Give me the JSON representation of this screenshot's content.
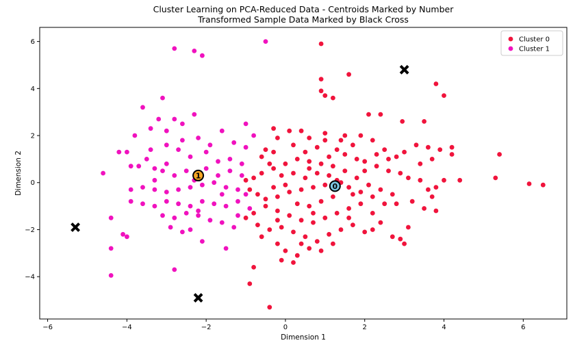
{
  "chart_data": {
    "type": "scatter",
    "title": "Cluster Learning on PCA-Reduced Data - Centroids Marked by Number",
    "subtitle": "Transformed Sample Data Marked by Black Cross",
    "xlabel": "Dimension 1",
    "ylabel": "Dimension 2",
    "xlim": [
      -6.2,
      7.1
    ],
    "ylim": [
      -5.8,
      6.6
    ],
    "xticks": [
      -6,
      -4,
      -2,
      0,
      2,
      4,
      6
    ],
    "yticks": [
      -4,
      -2,
      0,
      2,
      4,
      6
    ],
    "grid": false,
    "legend_position": "top-right",
    "legend": [
      "Cluster 0",
      "Cluster 1"
    ],
    "colors": {
      "cluster0": "#f0143c",
      "cluster1": "#f012be",
      "centroid0_fill": "#7ec8e3",
      "centroid1_fill": "#f5a623",
      "sample": "#000000"
    },
    "series": [
      {
        "name": "Cluster 0",
        "points": [
          [
            0.9,
            5.9
          ],
          [
            0.9,
            4.4
          ],
          [
            0.9,
            3.9
          ],
          [
            1.0,
            3.7
          ],
          [
            1.6,
            4.6
          ],
          [
            1.2,
            3.6
          ],
          [
            2.1,
            2.9
          ],
          [
            2.4,
            2.9
          ],
          [
            2.95,
            2.6
          ],
          [
            3.8,
            4.2
          ],
          [
            4.0,
            3.7
          ],
          [
            3.5,
            2.6
          ],
          [
            3.3,
            1.6
          ],
          [
            3.6,
            1.5
          ],
          [
            3.9,
            1.4
          ],
          [
            4.2,
            1.5
          ],
          [
            4.4,
            0.1
          ],
          [
            4.2,
            1.2
          ],
          [
            3.7,
            1.0
          ],
          [
            3.4,
            0.8
          ],
          [
            3.0,
            1.3
          ],
          [
            2.8,
            1.1
          ],
          [
            2.5,
            1.4
          ],
          [
            2.2,
            1.8
          ],
          [
            1.9,
            2.0
          ],
          [
            1.7,
            1.6
          ],
          [
            1.4,
            1.8
          ],
          [
            1.0,
            2.1
          ],
          [
            0.6,
            1.9
          ],
          [
            0.4,
            2.2
          ],
          [
            0.1,
            2.2
          ],
          [
            -0.3,
            2.3
          ],
          [
            -0.2,
            1.9
          ],
          [
            -0.5,
            1.4
          ],
          [
            -0.6,
            1.1
          ],
          [
            -0.4,
            0.8
          ],
          [
            0.2,
            1.6
          ],
          [
            0.5,
            1.3
          ],
          [
            0.8,
            1.5
          ],
          [
            1.1,
            1.1
          ],
          [
            1.3,
            1.4
          ],
          [
            1.5,
            1.2
          ],
          [
            1.8,
            1.0
          ],
          [
            2.0,
            0.9
          ],
          [
            2.3,
            0.7
          ],
          [
            2.6,
            0.5
          ],
          [
            2.9,
            0.4
          ],
          [
            3.1,
            0.2
          ],
          [
            3.4,
            0.1
          ],
          [
            3.6,
            -0.3
          ],
          [
            3.8,
            -0.2
          ],
          [
            4.0,
            0.1
          ],
          [
            3.7,
            -0.6
          ],
          [
            3.2,
            -0.8
          ],
          [
            3.5,
            -1.1
          ],
          [
            3.8,
            -1.2
          ],
          [
            3.1,
            -1.9
          ],
          [
            2.9,
            -2.4
          ],
          [
            3.0,
            -2.6
          ],
          [
            2.7,
            -2.3
          ],
          [
            2.4,
            -1.7
          ],
          [
            2.2,
            -1.3
          ],
          [
            2.5,
            -0.9
          ],
          [
            2.7,
            -0.5
          ],
          [
            2.4,
            -0.3
          ],
          [
            2.1,
            -0.1
          ],
          [
            1.8,
            0.2
          ],
          [
            1.5,
            0.5
          ],
          [
            1.2,
            0.7
          ],
          [
            0.9,
            0.8
          ],
          [
            0.6,
            0.9
          ],
          [
            0.3,
            1.0
          ],
          [
            0.0,
            0.8
          ],
          [
            -0.3,
            0.6
          ],
          [
            -0.6,
            0.4
          ],
          [
            -0.8,
            0.2
          ],
          [
            -1.0,
            0.1
          ],
          [
            -0.9,
            -0.3
          ],
          [
            -0.7,
            -0.5
          ],
          [
            -0.5,
            -0.7
          ],
          [
            -0.2,
            -0.6
          ],
          [
            0.1,
            -0.4
          ],
          [
            0.4,
            -0.3
          ],
          [
            0.7,
            -0.2
          ],
          [
            1.0,
            -0.1
          ],
          [
            1.3,
            0.1
          ],
          [
            1.6,
            -0.2
          ],
          [
            1.9,
            -0.4
          ],
          [
            2.2,
            -0.6
          ],
          [
            1.9,
            -0.9
          ],
          [
            1.6,
            -1.1
          ],
          [
            1.3,
            -1.3
          ],
          [
            1.0,
            -1.5
          ],
          [
            0.7,
            -1.7
          ],
          [
            0.4,
            -1.6
          ],
          [
            0.1,
            -1.4
          ],
          [
            -0.2,
            -1.2
          ],
          [
            -0.5,
            -1.0
          ],
          [
            -0.8,
            -1.3
          ],
          [
            -1.0,
            -1.5
          ],
          [
            -0.7,
            -1.8
          ],
          [
            -0.4,
            -2.0
          ],
          [
            -0.1,
            -1.9
          ],
          [
            0.2,
            -2.1
          ],
          [
            0.5,
            -2.3
          ],
          [
            0.8,
            -2.5
          ],
          [
            1.1,
            -2.2
          ],
          [
            1.4,
            -2.0
          ],
          [
            1.7,
            -1.8
          ],
          [
            2.0,
            -2.1
          ],
          [
            -0.2,
            -2.6
          ],
          [
            0.0,
            -2.9
          ],
          [
            0.3,
            -3.1
          ],
          [
            0.6,
            -2.8
          ],
          [
            0.9,
            -2.9
          ],
          [
            -0.1,
            -3.3
          ],
          [
            0.2,
            -3.4
          ],
          [
            -0.8,
            -3.6
          ],
          [
            -0.9,
            -4.3
          ],
          [
            -0.4,
            -5.3
          ],
          [
            -0.1,
            0.3
          ],
          [
            0.2,
            0.4
          ],
          [
            0.5,
            0.2
          ],
          [
            0.8,
            0.4
          ],
          [
            1.1,
            0.3
          ],
          [
            1.4,
            0.0
          ],
          [
            1.7,
            -0.5
          ],
          [
            2.0,
            0.5
          ],
          [
            0.3,
            -0.9
          ],
          [
            0.6,
            -1.0
          ],
          [
            0.9,
            -0.8
          ],
          [
            1.2,
            -0.6
          ],
          [
            -0.3,
            -0.2
          ],
          [
            0.0,
            -0.1
          ],
          [
            0.6,
            0.6
          ],
          [
            1.0,
            1.8
          ],
          [
            1.5,
            2.0
          ],
          [
            2.3,
            1.2
          ],
          [
            2.6,
            1.0
          ],
          [
            0.7,
            -1.3
          ],
          [
            -0.3,
            1.3
          ],
          [
            0.4,
            -2.6
          ],
          [
            1.2,
            -2.6
          ],
          [
            2.8,
            -0.9
          ],
          [
            5.3,
            0.2
          ],
          [
            5.4,
            1.2
          ],
          [
            6.15,
            -0.05
          ],
          [
            6.5,
            -0.1
          ],
          [
            2.2,
            -2.0
          ],
          [
            1.6,
            -1.5
          ],
          [
            -0.6,
            -2.3
          ],
          [
            -0.2,
            -1.6
          ]
        ]
      },
      {
        "name": "Cluster 1",
        "points": [
          [
            -2.8,
            5.7
          ],
          [
            -2.3,
            5.6
          ],
          [
            -2.1,
            5.4
          ],
          [
            -0.5,
            6.0
          ],
          [
            -3.1,
            3.6
          ],
          [
            -3.6,
            3.2
          ],
          [
            -2.8,
            2.7
          ],
          [
            -2.6,
            2.5
          ],
          [
            -2.3,
            2.9
          ],
          [
            -3.2,
            2.7
          ],
          [
            -3.4,
            2.3
          ],
          [
            -3.0,
            2.2
          ],
          [
            -2.2,
            1.9
          ],
          [
            -1.6,
            2.2
          ],
          [
            -1.3,
            1.7
          ],
          [
            -1.0,
            1.5
          ],
          [
            -3.8,
            2.0
          ],
          [
            -4.0,
            1.3
          ],
          [
            -4.2,
            1.3
          ],
          [
            -3.9,
            0.7
          ],
          [
            -3.4,
            1.4
          ],
          [
            -3.0,
            1.6
          ],
          [
            -2.7,
            1.4
          ],
          [
            -2.4,
            1.1
          ],
          [
            -2.0,
            1.3
          ],
          [
            -1.7,
            0.9
          ],
          [
            -1.4,
            1.0
          ],
          [
            -1.1,
            0.8
          ],
          [
            -3.7,
            0.7
          ],
          [
            -3.3,
            0.6
          ],
          [
            -3.1,
            0.5
          ],
          [
            -2.8,
            0.3
          ],
          [
            -2.5,
            0.5
          ],
          [
            -2.0,
            0.6
          ],
          [
            -1.7,
            0.3
          ],
          [
            -1.4,
            0.5
          ],
          [
            -1.1,
            0.3
          ],
          [
            -3.9,
            -0.3
          ],
          [
            -3.6,
            -0.2
          ],
          [
            -3.3,
            -0.3
          ],
          [
            -3.0,
            -0.4
          ],
          [
            -2.7,
            -0.3
          ],
          [
            -2.4,
            -0.2
          ],
          [
            -2.1,
            -0.1
          ],
          [
            -1.8,
            0.0
          ],
          [
            -1.5,
            -0.2
          ],
          [
            -1.2,
            -0.3
          ],
          [
            -4.6,
            0.4
          ],
          [
            -3.9,
            -0.8
          ],
          [
            -3.6,
            -0.9
          ],
          [
            -3.3,
            -1.0
          ],
          [
            -3.0,
            -0.8
          ],
          [
            -2.7,
            -0.9
          ],
          [
            -2.4,
            -1.0
          ],
          [
            -2.1,
            -0.8
          ],
          [
            -1.8,
            -0.9
          ],
          [
            -1.5,
            -1.0
          ],
          [
            -1.2,
            -0.8
          ],
          [
            -3.1,
            -1.4
          ],
          [
            -2.8,
            -1.5
          ],
          [
            -2.5,
            -1.3
          ],
          [
            -2.2,
            -1.4
          ],
          [
            -1.9,
            -1.6
          ],
          [
            -1.6,
            -1.7
          ],
          [
            -1.3,
            -1.9
          ],
          [
            -4.1,
            -2.2
          ],
          [
            -4.0,
            -2.3
          ],
          [
            -4.4,
            -1.5
          ],
          [
            -2.6,
            -2.1
          ],
          [
            -2.1,
            -2.5
          ],
          [
            -1.5,
            -2.8
          ],
          [
            -4.4,
            -2.8
          ],
          [
            -2.8,
            -3.7
          ],
          [
            -4.4,
            -3.95
          ],
          [
            -2.2,
            -1.2
          ],
          [
            -1.0,
            -0.5
          ],
          [
            -0.9,
            -1.1
          ],
          [
            -1.0,
            2.5
          ],
          [
            -0.8,
            2.0
          ],
          [
            -1.9,
            1.6
          ],
          [
            -2.6,
            1.8
          ],
          [
            -3.3,
            0.1
          ],
          [
            -3.0,
            0.8
          ],
          [
            -2.3,
            0.1
          ],
          [
            -1.6,
            -0.5
          ],
          [
            -2.9,
            -1.9
          ],
          [
            -3.5,
            1.0
          ],
          [
            -2.4,
            -2.0
          ],
          [
            -1.2,
            -1.4
          ]
        ]
      }
    ],
    "centroids": [
      {
        "label": "0",
        "x": 1.25,
        "y": -0.15
      },
      {
        "label": "1",
        "x": -2.2,
        "y": 0.3
      }
    ],
    "samples": [
      [
        3.0,
        4.8
      ],
      [
        -5.3,
        -1.9
      ],
      [
        -2.2,
        -4.9
      ]
    ]
  }
}
